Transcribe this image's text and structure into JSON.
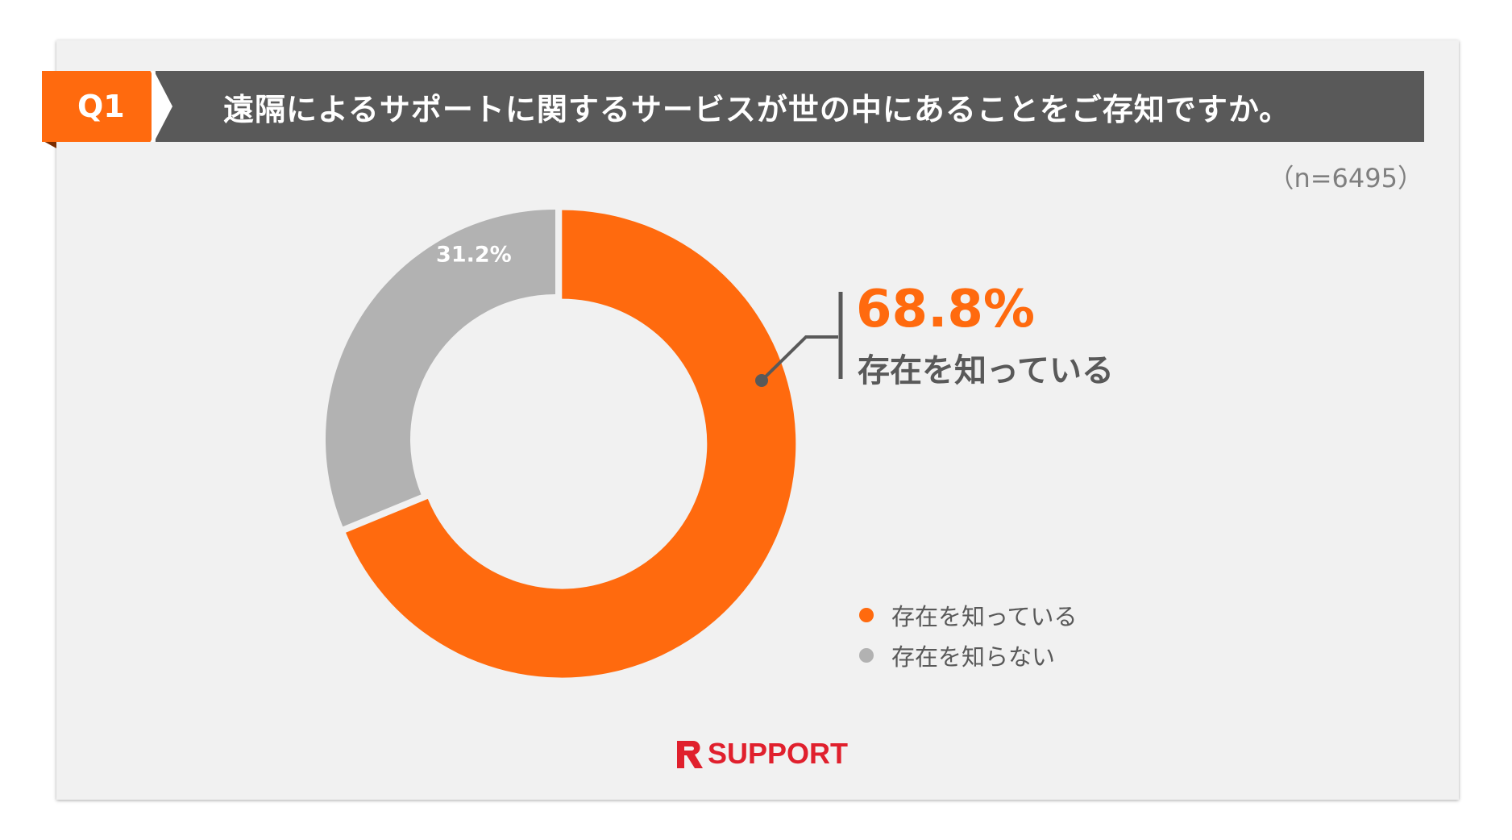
{
  "header": {
    "q_label": "Q1",
    "title": "遠隔によるサポートに関するサービスが世の中にあることをご存知ですか。"
  },
  "sample_size": "（n=6495）",
  "callout": {
    "value": "68.8%",
    "label": "存在を知っている"
  },
  "logo": {
    "text": "SUPPORT",
    "mark": "R"
  },
  "colors": {
    "accent": "#ff6a0e",
    "secondary": "#b2b2b2",
    "title_bar": "#595959"
  },
  "chart_data": {
    "type": "pie",
    "style": "donut",
    "labels": [
      "存在を知っている",
      "存在を知らない"
    ],
    "values": [
      68.8,
      31.2
    ],
    "data_labels": [
      "68.8%",
      "31.2%"
    ],
    "colors": [
      "#ff6a0e",
      "#b2b2b2"
    ],
    "legend_position": "bottom-right",
    "highlighted_slice": "存在を知っている"
  }
}
